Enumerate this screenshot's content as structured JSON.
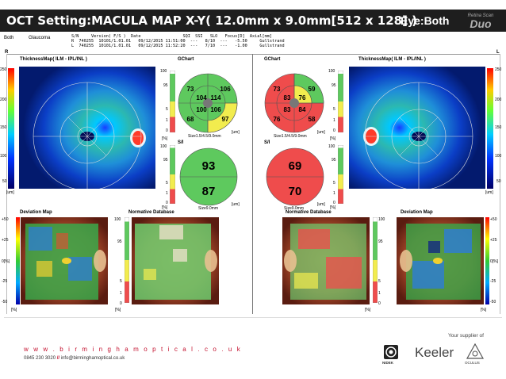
{
  "header": {
    "title": "OCT Setting:MACULA MAP X-Y( 12.0mm x 9.0mm[512 x 128] )",
    "eye": "Eye:Both",
    "logo_top": "Retina Scan",
    "logo_main": "Duo"
  },
  "patient": {
    "id": "Both",
    "diagnosis": "Glaucoma",
    "col_headers": "S/N     Version( F/S )  Date                 SQI  SSI   SLO   Focus[D]  Axial[mm]",
    "row_r": "R  740255  10101/1.01.01   09/12/2015 11:51:00  ---   8/10  ---   -5.50     Gullstrand",
    "row_l": "L  740255  10101/1.01.01   09/12/2015 11:52:20  ---   7/10  ---   -1.00     Gullstrand"
  },
  "side_labels": {
    "right": "R",
    "left": "L"
  },
  "common": {
    "thickness_title": "ThicknessMap( ILM - IPL/INL )",
    "gchart_title": "GChart",
    "si_title": "S/I",
    "deviation_title": "Deviation Map",
    "normative_title": "Normative Database",
    "um_unit": "[um]",
    "pct_unit": "[%]",
    "gchart_size": "Size1.5/4.5/9.0mm",
    "si_size": "Size9.0mm",
    "thickness_ticks": [
      "250",
      "200",
      "150",
      "100",
      "50"
    ],
    "pct_ticks": [
      "100",
      "95",
      "5",
      "1",
      "0"
    ],
    "dev_ticks": [
      "+50",
      "+25",
      "0[%]",
      "-25",
      "-50"
    ]
  },
  "right_eye": {
    "gchart": {
      "top_left": "73",
      "top_right": "106",
      "inner_top_left": "104",
      "inner_top_right": "114",
      "inner_bottom_left": "100",
      "inner_bottom_right": "106",
      "bottom_left": "68",
      "bottom_right": "97"
    },
    "si": {
      "superior": "93",
      "inferior": "87"
    }
  },
  "left_eye": {
    "gchart": {
      "top_left": "73",
      "top_right": "59",
      "inner_top_left": "83",
      "inner_top_right": "76",
      "inner_bottom_left": "83",
      "inner_bottom_right": "84",
      "bottom_left": "76",
      "bottom_right": "58"
    },
    "si": {
      "superior": "69",
      "inferior": "70"
    }
  },
  "footer": {
    "url": "w w w . b i r m i n g h a m o p t i c a l . c o . u k",
    "phone": "0845 230 3020",
    "sep": "//",
    "email": "info@birminghamoptical.co.uk",
    "supplier": "Your supplier of",
    "keeler": "Keeler",
    "nidek": "NIDEK",
    "oculus": "OCULUS"
  },
  "colors": {
    "green": "#5ec95e",
    "yellow": "#f2ec4e",
    "red": "#ef4c4c",
    "title_bg": "#1e1e1e",
    "url_red": "#c4122f"
  }
}
